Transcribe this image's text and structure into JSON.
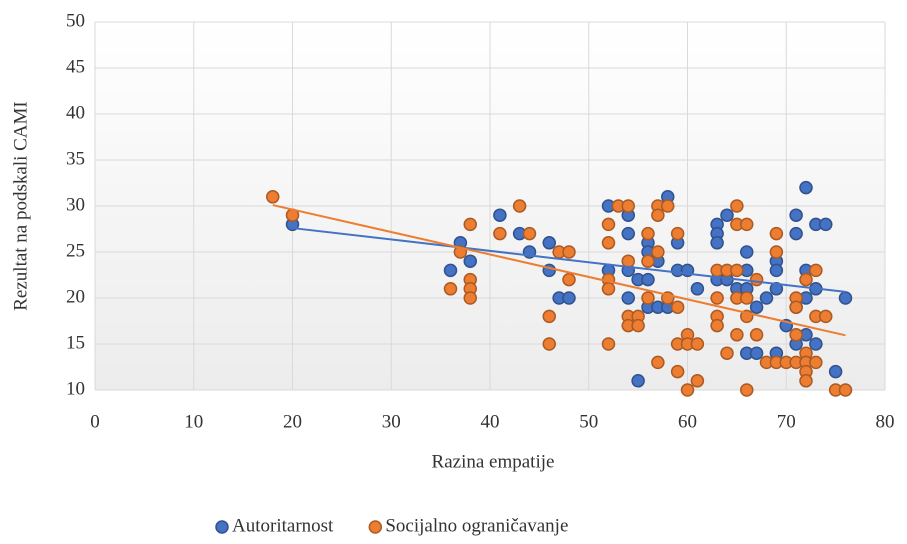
{
  "chart_data": {
    "type": "scatter",
    "x_label": "Razina empatije",
    "y_label": "Rezultat na podskali CAMI",
    "xlim": [
      0,
      80
    ],
    "xticks": [
      0,
      10,
      20,
      30,
      40,
      50,
      60,
      70,
      80
    ],
    "ylim": [
      10,
      50
    ],
    "yticks": [
      10,
      15,
      20,
      25,
      30,
      35,
      40,
      45,
      50
    ],
    "grid": true,
    "legend": "bottom",
    "trendline": true,
    "series": [
      {
        "name": "Autoritarnost",
        "color": "#4472c4",
        "x": [
          20,
          37,
          36,
          38,
          41,
          43,
          44,
          46,
          46,
          47,
          48,
          52,
          52,
          54,
          54,
          54,
          54,
          55,
          55,
          56,
          56,
          56,
          56,
          57,
          57,
          58,
          58,
          59,
          59,
          60,
          61,
          63,
          63,
          63,
          63,
          64,
          64,
          65,
          66,
          66,
          66,
          66,
          67,
          67,
          68,
          69,
          69,
          69,
          69,
          70,
          71,
          71,
          71,
          71,
          72,
          72,
          72,
          72,
          73,
          73,
          73,
          74,
          75,
          76
        ],
        "values": [
          28,
          26,
          23,
          24,
          29,
          27,
          25,
          26,
          23,
          20,
          20,
          30,
          23,
          29,
          27,
          23,
          20,
          22,
          11,
          26,
          25,
          22,
          19,
          24,
          19,
          31,
          19,
          26,
          23,
          23,
          21,
          28,
          27,
          26,
          22,
          29,
          22,
          21,
          25,
          23,
          21,
          14,
          19,
          14,
          20,
          24,
          23,
          21,
          14,
          17,
          29,
          27,
          19,
          15,
          32,
          23,
          20,
          16,
          28,
          21,
          15,
          28,
          12,
          20
        ]
      },
      {
        "name": "Socijalno ograničavanje",
        "color": "#ed7d31",
        "x": [
          18,
          20,
          36,
          37,
          38,
          38,
          38,
          38,
          41,
          43,
          44,
          46,
          46,
          47,
          48,
          48,
          52,
          52,
          52,
          52,
          52,
          53,
          54,
          54,
          54,
          54,
          55,
          55,
          56,
          56,
          56,
          57,
          57,
          57,
          57,
          58,
          58,
          59,
          59,
          59,
          59,
          60,
          60,
          60,
          61,
          61,
          63,
          63,
          63,
          63,
          64,
          64,
          65,
          65,
          65,
          65,
          65,
          66,
          66,
          66,
          66,
          67,
          67,
          68,
          69,
          69,
          69,
          70,
          71,
          71,
          71,
          71,
          72,
          72,
          72,
          72,
          72,
          73,
          73,
          73,
          74,
          75,
          76
        ],
        "values": [
          31,
          29,
          21,
          25,
          28,
          22,
          21,
          20,
          27,
          30,
          27,
          18,
          15,
          25,
          25,
          22,
          28,
          26,
          22,
          21,
          15,
          30,
          30,
          24,
          18,
          17,
          18,
          17,
          27,
          24,
          20,
          30,
          29,
          25,
          13,
          30,
          20,
          27,
          19,
          15,
          12,
          16,
          15,
          10,
          15,
          11,
          23,
          20,
          18,
          17,
          23,
          14,
          30,
          28,
          23,
          20,
          16,
          28,
          20,
          18,
          10,
          22,
          16,
          13,
          27,
          25,
          13,
          13,
          20,
          19,
          16,
          13,
          22,
          14,
          13,
          12,
          11,
          23,
          18,
          13,
          18,
          10,
          10
        ]
      }
    ]
  }
}
